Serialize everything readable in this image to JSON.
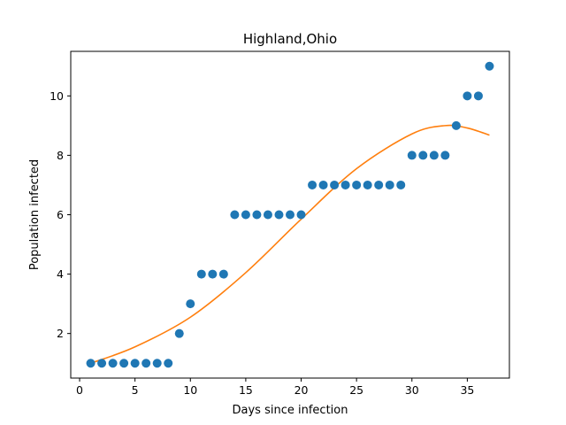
{
  "chart_data": {
    "type": "scatter",
    "title": "Highland,Ohio",
    "xlabel": "Days since infection",
    "ylabel": "Population infected",
    "xlim": [
      -0.8,
      38.8
    ],
    "ylim": [
      0.5,
      11.5
    ],
    "xticks": [
      0,
      5,
      10,
      15,
      20,
      25,
      30,
      35
    ],
    "yticks": [
      2,
      4,
      6,
      8,
      10
    ],
    "grid": false,
    "series": [
      {
        "type": "scatter",
        "color": "#1f77b4",
        "x": [
          1,
          2,
          3,
          4,
          5,
          6,
          7,
          8,
          9,
          10,
          11,
          12,
          13,
          14,
          15,
          16,
          17,
          18,
          19,
          20,
          21,
          22,
          23,
          24,
          25,
          26,
          27,
          28,
          29,
          30,
          31,
          32,
          33,
          34,
          35,
          36,
          37
        ],
        "y": [
          1,
          1,
          1,
          1,
          1,
          1,
          1,
          1,
          2,
          3,
          4,
          4,
          4,
          6,
          6,
          6,
          6,
          6,
          6,
          6,
          7,
          7,
          7,
          7,
          7,
          7,
          7,
          7,
          7,
          8,
          8,
          8,
          8,
          9,
          10,
          10,
          11
        ]
      },
      {
        "type": "line",
        "color": "#ff7f0e",
        "x": [
          1,
          5,
          10,
          15,
          20,
          25,
          30,
          33,
          35,
          37
        ],
        "y": [
          1.0,
          1.55,
          2.55,
          4.05,
          5.85,
          7.55,
          8.72,
          9.0,
          8.92,
          8.68
        ]
      }
    ]
  }
}
